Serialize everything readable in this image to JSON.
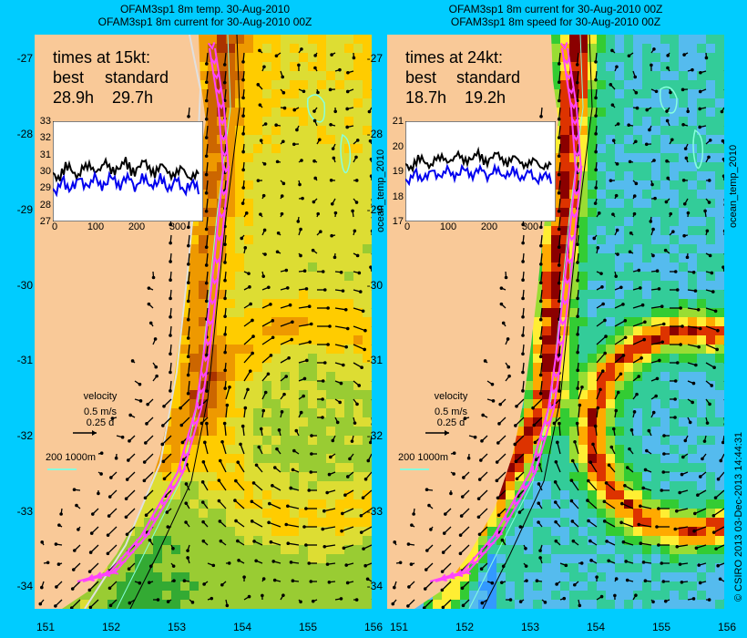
{
  "titles": {
    "left_line1": "OFAM3sp1 8m temp. 30-Aug-2010",
    "left_line2": "OFAM3sp1 8m current for 30-Aug-2010 00Z",
    "right_line1": "OFAM3sp1 8m current for 30-Aug-2010 00Z",
    "right_line2": "OFAM3sp1 8m speed for 30-Aug-2010 00Z"
  },
  "axes": {
    "lat_ticks": [
      "-27",
      "-28",
      "-29",
      "-30",
      "-31",
      "-32",
      "-33",
      "-34"
    ],
    "lon_ticks": [
      "151",
      "152",
      "153",
      "154",
      "155",
      "156"
    ]
  },
  "left_panel": {
    "header": "times at 15kt:",
    "col1": "best",
    "col2": "standard",
    "val1": "28.9h",
    "val2": "29.7h",
    "inset_yticks": [
      "33",
      "32",
      "31",
      "30",
      "29",
      "28",
      "27"
    ],
    "inset_xticks": [
      "0",
      "100",
      "200",
      "300"
    ],
    "velocity_label": "velocity",
    "velocity_scale": "0.5 m/s",
    "velocity_days": "0.25 d",
    "contour_label": "200  1000m"
  },
  "right_panel": {
    "header": "times at 24kt:",
    "col1": "best",
    "col2": "standard",
    "val1": "18.7h",
    "val2": "19.2h",
    "inset_yticks": [
      "21",
      "20",
      "19",
      "18",
      "17"
    ],
    "inset_xticks": [
      "0",
      "100",
      "200",
      "300"
    ],
    "velocity_label": "velocity",
    "velocity_scale": "0.5 m/s",
    "velocity_days": "0.25 d",
    "contour_label": "200  1000m"
  },
  "side_labels": {
    "mid_label": "ocean_temp_2010",
    "right_label": "ocean_temp_2010",
    "credit": "© CSIRO 2013   03-Dec-2013 14:44:31"
  },
  "colors": {
    "frame": "#00ccff",
    "land": "#f9c998",
    "route": "#ff44ff",
    "contour": "#88ffdd",
    "dark_red": "#8b0000",
    "series_best": "#0000ee",
    "series_standard": "#000000"
  }
}
